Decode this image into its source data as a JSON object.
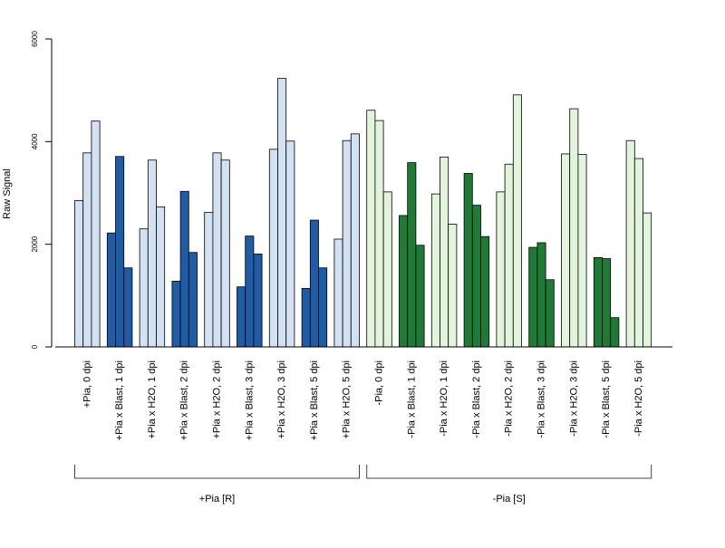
{
  "chart_data": {
    "type": "bar",
    "ylabel": "Raw Signal",
    "ylim": [
      0,
      6000
    ],
    "yticks": [
      0,
      2000,
      4000,
      6000
    ],
    "grid": false,
    "bars_per_category": 3,
    "colors": {
      "h2o_plus": "#d3e2f3",
      "blast_plus": "#1f5ca6",
      "h2o_minus": "#e3f4dc",
      "blast_minus": "#1f7a35",
      "outline": "#000000"
    },
    "categories": [
      {
        "label": "+Pia, 0 dpi",
        "color": "h2o_plus",
        "values": [
          2850,
          3780,
          4400
        ]
      },
      {
        "label": "+Pia x Blast, 1 dpi",
        "color": "blast_plus",
        "values": [
          2220,
          3710,
          1540
        ]
      },
      {
        "label": "+Pia x H2O, 1 dpi",
        "color": "h2o_plus",
        "values": [
          2300,
          3640,
          2730
        ]
      },
      {
        "label": "+Pia x Blast, 2 dpi",
        "color": "blast_plus",
        "values": [
          1280,
          3030,
          1840
        ]
      },
      {
        "label": "+Pia x H2O, 2 dpi",
        "color": "h2o_plus",
        "values": [
          2620,
          3780,
          3640
        ]
      },
      {
        "label": "+Pia x Blast, 3 dpi",
        "color": "blast_plus",
        "values": [
          1170,
          2160,
          1810
        ]
      },
      {
        "label": "+Pia x H2O, 3 dpi",
        "color": "h2o_plus",
        "values": [
          3850,
          5230,
          4010
        ]
      },
      {
        "label": "+Pia x Blast, 5 dpi",
        "color": "blast_plus",
        "values": [
          1140,
          2470,
          1540
        ]
      },
      {
        "label": "+Pia x H2O, 5 dpi",
        "color": "h2o_plus",
        "values": [
          2100,
          4020,
          4150
        ]
      },
      {
        "label": "-Pia, 0 dpi",
        "color": "h2o_minus",
        "values": [
          4610,
          4410,
          3020
        ]
      },
      {
        "label": "-Pia x Blast, 1 dpi",
        "color": "blast_minus",
        "values": [
          2560,
          3590,
          1980
        ]
      },
      {
        "label": "-Pia x H2O, 1 dpi",
        "color": "h2o_minus",
        "values": [
          2980,
          3700,
          2390
        ]
      },
      {
        "label": "-Pia x Blast, 2 dpi",
        "color": "blast_minus",
        "values": [
          3380,
          2760,
          2150
        ]
      },
      {
        "label": "-Pia x H2O, 2 dpi",
        "color": "h2o_minus",
        "values": [
          3020,
          3560,
          4910
        ]
      },
      {
        "label": "-Pia x Blast, 3 dpi",
        "color": "blast_minus",
        "values": [
          1940,
          2030,
          1310
        ]
      },
      {
        "label": "-Pia x H2O, 3 dpi",
        "color": "h2o_minus",
        "values": [
          3760,
          4640,
          3750
        ]
      },
      {
        "label": "-Pia x Blast, 5 dpi",
        "color": "blast_minus",
        "values": [
          1740,
          1720,
          570
        ]
      },
      {
        "label": "-Pia x H2O, 5 dpi",
        "color": "h2o_minus",
        "values": [
          4020,
          3670,
          2610
        ]
      }
    ],
    "groups": [
      {
        "label": "+Pia [R]",
        "first": 0,
        "last": 8
      },
      {
        "label": "-Pia [S]",
        "first": 9,
        "last": 17
      }
    ]
  }
}
